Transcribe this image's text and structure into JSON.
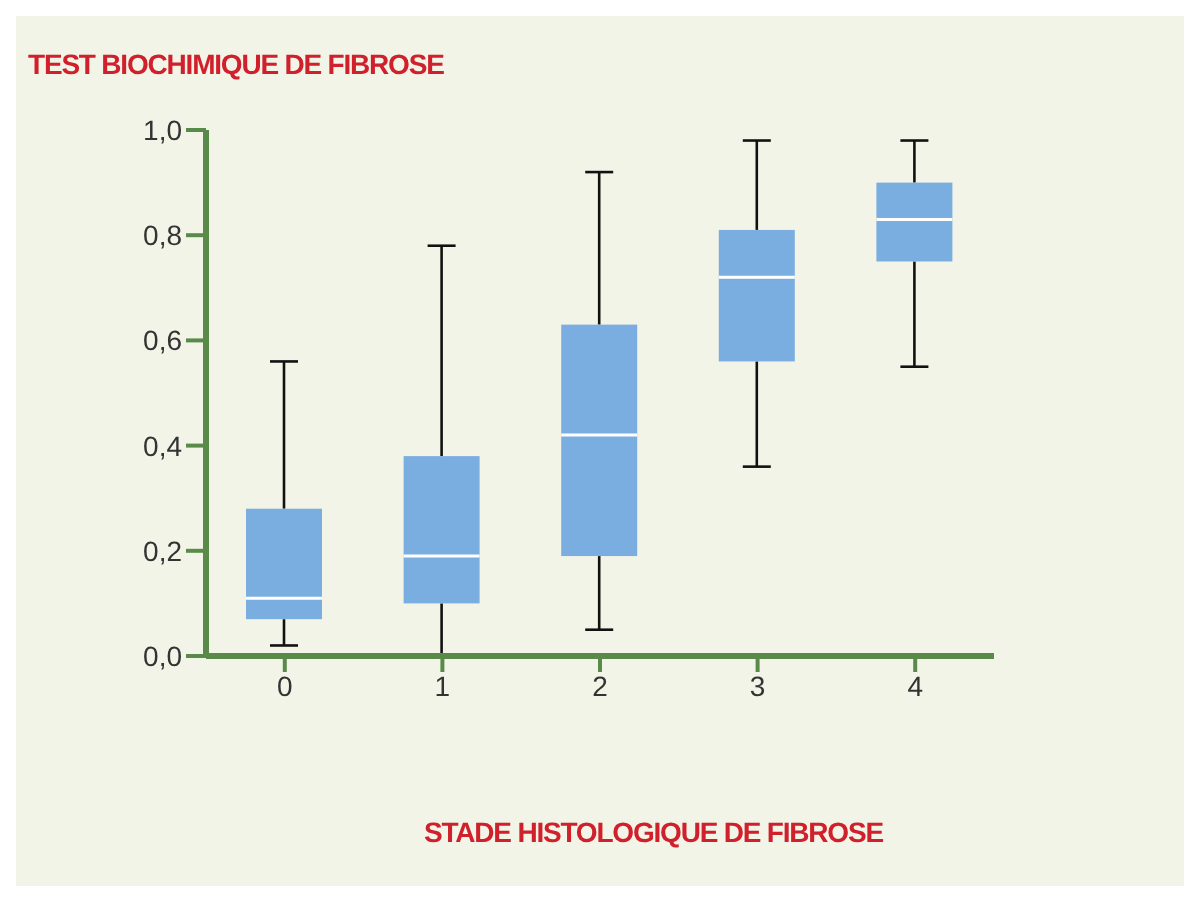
{
  "chart_data": {
    "type": "box",
    "title": "TEST BIOCHIMIQUE DE FIBROSE",
    "xlabel": "STADE HISTOLOGIQUE DE FIBROSE",
    "categories": [
      "0",
      "1",
      "2",
      "3",
      "4"
    ],
    "color": "#7aaee0",
    "boxes": [
      {
        "low": 0.02,
        "q1": 0.07,
        "median": 0.11,
        "q3": 0.28,
        "high": 0.56
      },
      {
        "low": -0.01,
        "q1": 0.1,
        "median": 0.19,
        "q3": 0.38,
        "high": 0.78
      },
      {
        "low": 0.05,
        "q1": 0.19,
        "median": 0.42,
        "q3": 0.63,
        "high": 0.92
      },
      {
        "low": 0.36,
        "q1": 0.56,
        "median": 0.72,
        "q3": 0.81,
        "high": 0.98
      },
      {
        "low": 0.55,
        "q1": 0.75,
        "median": 0.83,
        "q3": 0.9,
        "high": 0.98
      }
    ],
    "ylim": [
      0,
      1
    ],
    "yticks": [
      {
        "value": 0,
        "label": "0,0"
      },
      {
        "value": 0.2,
        "label": "0,2"
      },
      {
        "value": 0.4,
        "label": "0,4"
      },
      {
        "value": 0.6,
        "label": "0,6"
      },
      {
        "value": 0.8,
        "label": "0,8"
      },
      {
        "value": 1,
        "label": "1,0"
      }
    ],
    "grid": false
  }
}
